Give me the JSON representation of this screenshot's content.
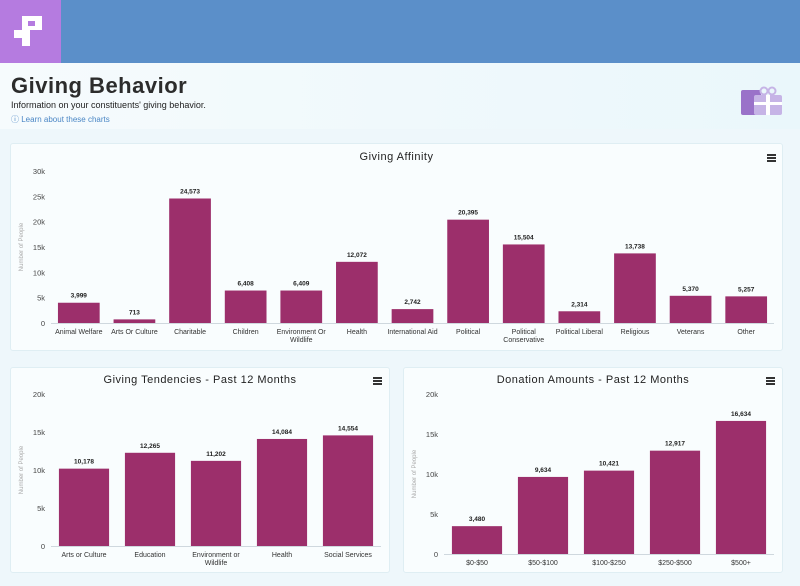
{
  "page": {
    "title": "Giving Behavior",
    "subtitle": "Information on your constituents' giving behavior.",
    "learn_link": "ⓘ Learn about these charts"
  },
  "colors": {
    "bar": "#9c2f6b",
    "topbar": "#5b8fc9",
    "logo": "#b57be0"
  },
  "chart_data": [
    {
      "type": "bar",
      "title": "Giving Affinity",
      "ylabel": "Number of People",
      "ylim": [
        0,
        30000
      ],
      "yticks": [
        "0",
        "5k",
        "10k",
        "15k",
        "20k",
        "25k",
        "30k"
      ],
      "categories": [
        [
          "Animal Welfare"
        ],
        [
          "Arts Or Culture"
        ],
        [
          "Charitable"
        ],
        [
          "Children"
        ],
        [
          "Environment Or",
          "Wildlife"
        ],
        [
          "Health"
        ],
        [
          "International Aid"
        ],
        [
          "Political"
        ],
        [
          "Political",
          "Conservative"
        ],
        [
          "Political Liberal"
        ],
        [
          "Religious"
        ],
        [
          "Veterans"
        ],
        [
          "Other"
        ]
      ],
      "values": [
        3999,
        713,
        24573,
        6408,
        6409,
        12072,
        2742,
        20395,
        15504,
        2314,
        13738,
        5370,
        5257
      ],
      "labels": [
        "3,999",
        "713",
        "24,573",
        "6,408",
        "6,409",
        "12,072",
        "2,742",
        "20,395",
        "15,504",
        "2,314",
        "13,738",
        "5,370",
        "5,257"
      ]
    },
    {
      "type": "bar",
      "title": "Giving Tendencies - Past 12 Months",
      "ylabel": "Number of People",
      "ylim": [
        0,
        20000
      ],
      "yticks": [
        "0",
        "5k",
        "10k",
        "15k",
        "20k"
      ],
      "categories": [
        [
          "Arts or Culture"
        ],
        [
          "Education"
        ],
        [
          "Environment or",
          "Wildlife"
        ],
        [
          "Health"
        ],
        [
          "Social Services"
        ]
      ],
      "values": [
        10178,
        12265,
        11202,
        14084,
        14554
      ],
      "labels": [
        "10,178",
        "12,265",
        "11,202",
        "14,084",
        "14,554"
      ]
    },
    {
      "type": "bar",
      "title": "Donation Amounts - Past 12 Months",
      "ylabel": "Number of People",
      "ylim": [
        0,
        20000
      ],
      "yticks": [
        "0",
        "5k",
        "10k",
        "15k",
        "20k"
      ],
      "categories": [
        [
          "$0-$50"
        ],
        [
          "$50-$100"
        ],
        [
          "$100-$250"
        ],
        [
          "$250-$500"
        ],
        [
          "$500+"
        ]
      ],
      "values": [
        3480,
        9634,
        10421,
        12917,
        16634
      ],
      "labels": [
        "3,480",
        "9,634",
        "10,421",
        "12,917",
        "16,634"
      ]
    }
  ]
}
